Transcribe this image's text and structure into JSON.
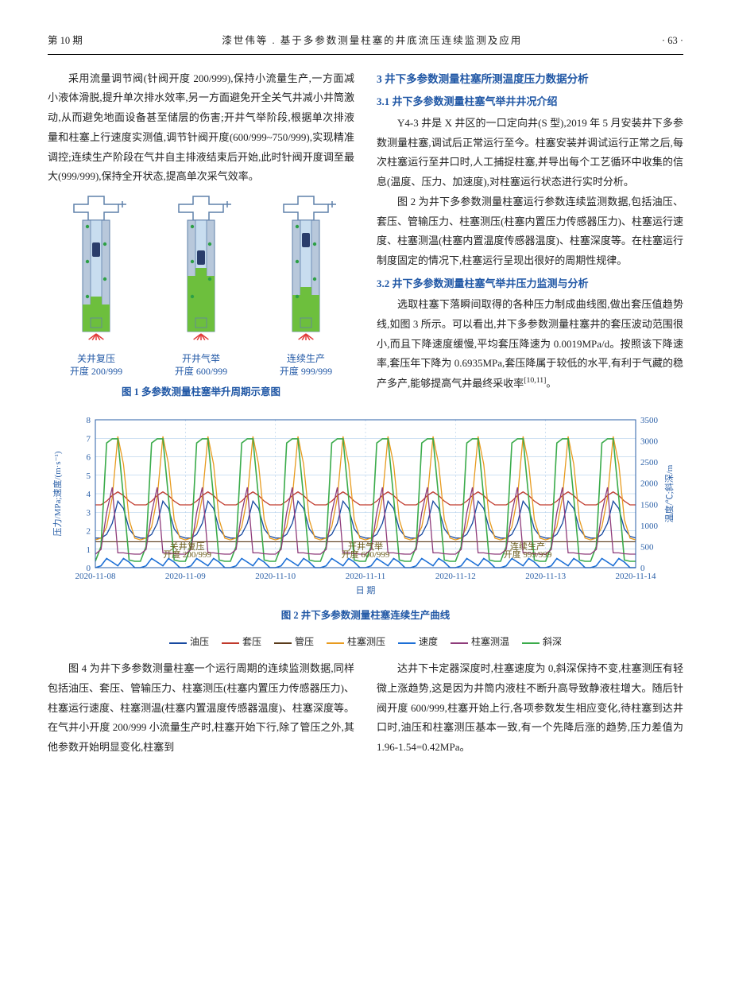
{
  "header": {
    "issue": "第 10 期",
    "title_line": "漆世伟等 . 基于多参数测量柱塞的井底流压连续监测及应用",
    "page_no": "· 63 ·"
  },
  "col_left": {
    "para1": "采用流量调节阀(针阀开度 200/999),保持小流量生产,一方面减小液体滑脱,提升单次排水效率,另一方面避免开全关气井减小井筒激动,从而避免地面设备甚至储层的伤害;开井气举阶段,根据单次排液量和柱塞上行速度实测值,调节针阀开度(600/999~750/999),实现精准调控;连续生产阶段在气井自主排液结束后开始,此时针阀开度调至最大(999/999),保持全开状态,提高单次采气效率。"
  },
  "fig1": {
    "caption": "图 1  多参数测量柱塞举升周期示意图",
    "wells": [
      {
        "label_top": "关井复压",
        "label_bot": "开度 200/999",
        "fill_h": 44
      },
      {
        "label_top": "开井气举",
        "label_bot": "开度 600/999",
        "fill_h": 80
      },
      {
        "label_top": "连续生产",
        "label_bot": "开度 999/999",
        "fill_h": 56
      }
    ],
    "colors": {
      "fluid": "#6dbf3d",
      "tubing": "#c8ddef",
      "casing": "#b8c8db",
      "plunger": "#2a3d6b",
      "dot": "#2da046",
      "rays": "#e23a3a",
      "outline": "#5f80aa"
    }
  },
  "col_right": {
    "h3": "3  井下多参数测量柱塞所测温度压力数据分析",
    "h4a": "3.1  井下多参数测量柱塞气举井井况介绍",
    "para_r1": "Y4-3 井是 X 井区的一口定向井(S 型),2019 年 5 月安装井下多参数测量柱塞,调试后正常运行至今。柱塞安装并调试运行正常之后,每次柱塞运行至井口时,人工捕捉柱塞,并导出每个工艺循环中收集的信息(温度、压力、加速度),对柱塞运行状态进行实时分析。",
    "para_r2": "图 2 为井下多参数测量柱塞运行参数连续监测数据,包括油压、套压、管输压力、柱塞测压(柱塞内置压力传感器压力)、柱塞运行速度、柱塞测温(柱塞内置温度传感器温度)、柱塞深度等。在柱塞运行制度固定的情况下,柱塞运行呈现出很好的周期性规律。",
    "h4b": "3.2  井下多参数测量柱塞气举井压力监测与分析",
    "para_r3": "选取柱塞下落瞬间取得的各种压力制成曲线图,做出套压值趋势线,如图 3 所示。可以看出,井下多参数测量柱塞井的套压波动范围很小,而且下降速度缓慢,平均套压降速为 0.0019MPa/d。按照该下降速率,套压年下降为 0.6935MPa,套压降属于较低的水平,有利于气藏的稳产多产,能够提高气井最终采收率",
    "cite": "[10,11]",
    "para_r3_tail": "。"
  },
  "fig2": {
    "caption": "图 2  井下多参数测量柱塞连续生产曲线",
    "x_dates": [
      "2020-11-08",
      "2020-11-09",
      "2020-11-10",
      "2020-11-11",
      "2020-11-12",
      "2020-11-13",
      "2020-11-14"
    ],
    "x_label": "日  期",
    "y_left_label": "压力/MPa;速度/(m·s⁻¹)",
    "y_left_ticks": [
      0,
      1,
      2,
      3,
      4,
      5,
      6,
      7,
      8
    ],
    "y_right_label": "温度/℃;斜深/m",
    "y_right_ticks": [
      0,
      500,
      1000,
      1500,
      2000,
      2500,
      3000,
      3500
    ],
    "grid_color": "#9fc3e4",
    "axis_color": "#2a5fa7",
    "text_color": "#2a5fa7",
    "background": "#ffffff",
    "annots": [
      {
        "x": 0.17,
        "l1": "关井复压",
        "l2": "开度 200/999"
      },
      {
        "x": 0.5,
        "l1": "开井气举",
        "l2": "开度 600/999"
      },
      {
        "x": 0.8,
        "l1": "连续生产",
        "l2": "开度 999/999"
      }
    ],
    "series": {
      "oil_p": {
        "label": "油压",
        "color": "#1749a0",
        "cycle": [
          1.6,
          1.6,
          1.8,
          2.4,
          3.6,
          3.2,
          2.1,
          1.7
        ]
      },
      "casing_p": {
        "label": "套压",
        "color": "#c0392b",
        "cycle": [
          3.4,
          3.4,
          3.6,
          3.9,
          4.1,
          3.9,
          3.6,
          3.4
        ]
      },
      "pipe_p": {
        "label": "管压",
        "color": "#5a3b1a",
        "flat": 1.4
      },
      "plug_p": {
        "label": "柱塞测压",
        "color": "#e89b1f",
        "cycle": [
          1.5,
          1.6,
          2.2,
          3.8,
          7.1,
          5.6,
          2.6,
          1.6
        ]
      },
      "speed": {
        "label": "速度",
        "color": "#1c6fd6",
        "cycle": [
          0,
          0.1,
          0.5,
          0.3,
          0.1,
          0.5,
          0.3,
          0
        ]
      },
      "plug_t": {
        "label": "柱塞测温",
        "color": "#8e3b7a",
        "cycle_raw": [
          320,
          430,
          1300,
          1900,
          350,
          350,
          330,
          320
        ]
      },
      "depth": {
        "label": "斜深",
        "color": "#3aab4a",
        "cycle_raw": [
          150,
          500,
          2950,
          3050,
          3050,
          1650,
          180,
          150
        ]
      }
    },
    "cycles": 12,
    "y_right_max": 3500
  },
  "bottom": {
    "left_para": "图 4 为井下多参数测量柱塞一个运行周期的连续监测数据,同样包括油压、套压、管输压力、柱塞测压(柱塞内置压力传感器压力)、柱塞运行速度、柱塞测温(柱塞内置温度传感器温度)、柱塞深度等。在气井小开度 200/999 小流量生产时,柱塞开始下行,除了管压之外,其他参数开始明显变化,柱塞到",
    "right_para": "达井下卡定器深度时,柱塞速度为 0,斜深保持不变,柱塞测压有轻微上涨趋势,这是因为井筒内液柱不断升高导致静液柱增大。随后针阀开度 600/999,柱塞开始上行,各项参数发生相应变化,待柱塞到达井口时,油压和柱塞测压基本一致,有一个先降后涨的趋势,压力差值为 1.96-1.54=0.42MPa。"
  }
}
